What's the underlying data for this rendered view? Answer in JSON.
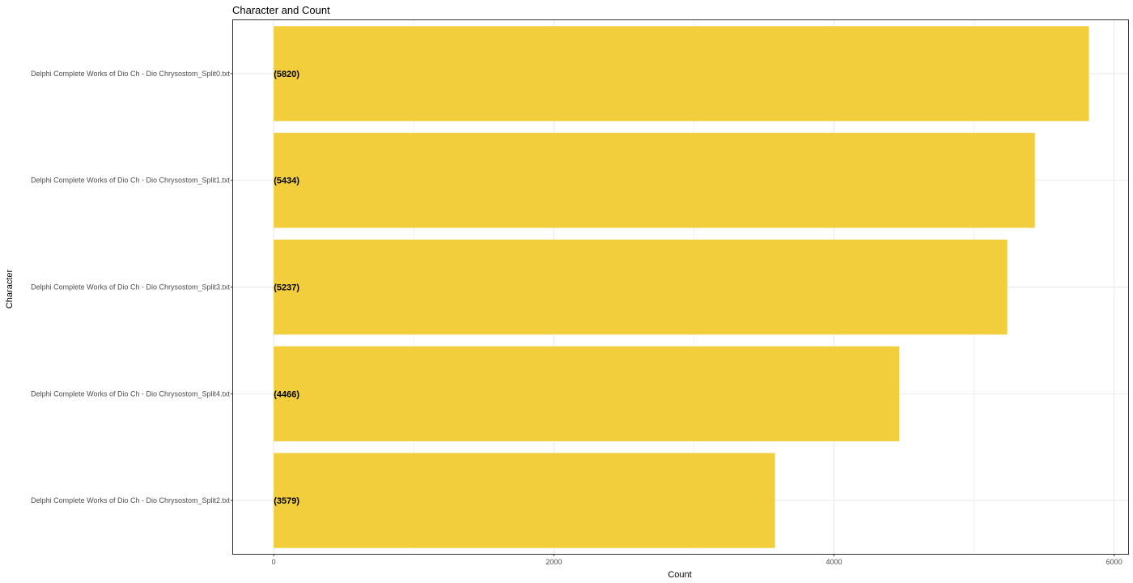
{
  "chart_data": {
    "type": "bar",
    "orientation": "horizontal",
    "title": "Character and Count",
    "xlabel": "Count",
    "ylabel": "Character",
    "categories": [
      "Delphi Complete Works of Dio Ch - Dio Chrysostom_Split0.txt",
      "Delphi Complete Works of Dio Ch - Dio Chrysostom_Split1.txt",
      "Delphi Complete Works of Dio Ch - Dio Chrysostom_Split3.txt",
      "Delphi Complete Works of Dio Ch - Dio Chrysostom_Split4.txt",
      "Delphi Complete Works of Dio Ch - Dio Chrysostom_Split2.txt"
    ],
    "values": [
      5820,
      5434,
      5237,
      4466,
      3579
    ],
    "data_labels": [
      "(5820)",
      "(5434)",
      "(5237)",
      "(4466)",
      "(3579)"
    ],
    "xlim": [
      -290,
      6100
    ],
    "x_ticks": [
      0,
      2000,
      4000,
      6000
    ],
    "x_tick_labels": [
      "0",
      "2000",
      "4000",
      "6000"
    ],
    "grid": true,
    "bar_color": "#F2CE3D",
    "grid_color": "#E5E5E5",
    "panel_border_color": "#333333"
  }
}
